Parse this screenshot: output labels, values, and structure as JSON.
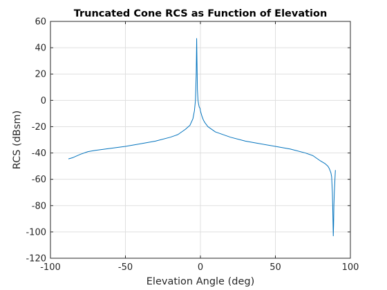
{
  "chart_data": {
    "type": "line",
    "title": "Truncated Cone RCS as Function of Elevation",
    "xlabel": "Elevation Angle (deg)",
    "ylabel": "RCS (dBsm)",
    "xlim": [
      -100,
      100
    ],
    "ylim": [
      -120,
      60
    ],
    "xticks": [
      -100,
      -50,
      0,
      50,
      100
    ],
    "yticks": [
      -120,
      -100,
      -80,
      -60,
      -40,
      -20,
      0,
      20,
      40,
      60
    ],
    "xtick_labels": [
      "-100",
      "-50",
      "0",
      "50",
      "100"
    ],
    "ytick_labels": [
      "-120",
      "-100",
      "-80",
      "-60",
      "-40",
      "-20",
      "0",
      "20",
      "40",
      "60"
    ],
    "grid": true,
    "series": [
      {
        "color": "#0072bd",
        "x": [
          -88,
          -85,
          -80,
          -75,
          -70,
          -60,
          -50,
          -40,
          -30,
          -20,
          -15,
          -10,
          -7,
          -5,
          -4,
          -3.3,
          -2.8,
          -2.5,
          -2.3,
          -2,
          -1.6,
          -1.2,
          -0.8,
          -0.3,
          0,
          0.5,
          1,
          2,
          3,
          5,
          10,
          20,
          30,
          40,
          50,
          60,
          70,
          75,
          80,
          83,
          85,
          86,
          87,
          87.5,
          88,
          88.3,
          88.6,
          88.8,
          89,
          89.3,
          89.7,
          90
        ],
        "y": [
          -44.5,
          -43.5,
          -41,
          -39,
          -38,
          -36.5,
          -35,
          -33,
          -31,
          -28,
          -26,
          -22,
          -19,
          -14,
          -8,
          0,
          20,
          47,
          30,
          8,
          0,
          -3,
          -5,
          -6,
          -8,
          -10,
          -12,
          -15,
          -17,
          -20,
          -24,
          -28,
          -31,
          -33,
          -35,
          -37,
          -40,
          -42,
          -46,
          -48,
          -50,
          -52,
          -55,
          -58,
          -70,
          -85,
          -103,
          -95,
          -80,
          -70,
          -60,
          -53
        ]
      }
    ]
  }
}
